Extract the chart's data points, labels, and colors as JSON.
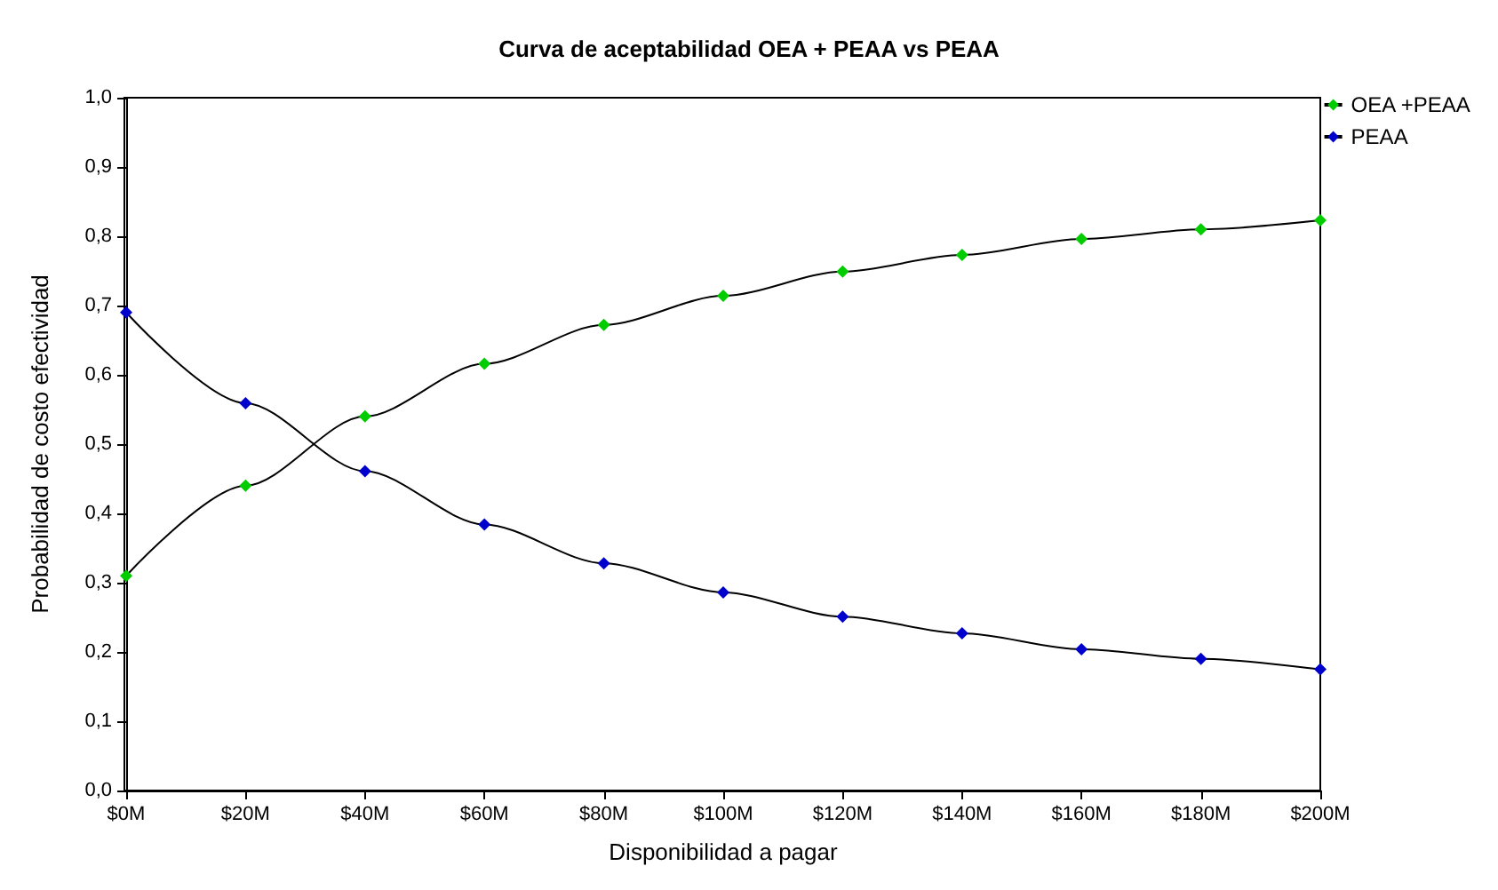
{
  "chart_data": {
    "type": "line",
    "title": "Curva de aceptabilidad OEA + PEAA vs PEAA",
    "xlabel": "Disponibilidad a pagar",
    "ylabel": "Probabilidad de costo efectividad",
    "categories": [
      "$0M",
      "$20M",
      "$40M",
      "$60M",
      "$80M",
      "$100M",
      "$120M",
      "$140M",
      "$160M",
      "$180M",
      "$200M"
    ],
    "series": [
      {
        "name": "OEA +PEAA",
        "color": "#00cc00",
        "values": [
          0.31,
          0.44,
          0.54,
          0.616,
          0.672,
          0.714,
          0.749,
          0.773,
          0.796,
          0.81,
          0.823
        ]
      },
      {
        "name": "PEAA",
        "color": "#0000cc",
        "values": [
          0.69,
          0.559,
          0.461,
          0.384,
          0.328,
          0.286,
          0.251,
          0.227,
          0.204,
          0.19,
          0.175
        ]
      }
    ],
    "ylim": [
      0,
      1
    ],
    "yticks": [
      {
        "value": 0,
        "label": "0,0"
      },
      {
        "value": 0.1,
        "label": "0,1"
      },
      {
        "value": 0.2,
        "label": "0,2"
      },
      {
        "value": 0.3,
        "label": "0,3"
      },
      {
        "value": 0.4,
        "label": "0,4"
      },
      {
        "value": 0.5,
        "label": "0,5"
      },
      {
        "value": 0.6,
        "label": "0,6"
      },
      {
        "value": 0.7,
        "label": "0,7"
      },
      {
        "value": 0.8,
        "label": "0,8"
      },
      {
        "value": 0.9,
        "label": "0,9"
      },
      {
        "value": 1,
        "label": "1,0"
      }
    ],
    "grid": false,
    "legend": "top right",
    "marker": "diamond",
    "line_style": "solid"
  }
}
